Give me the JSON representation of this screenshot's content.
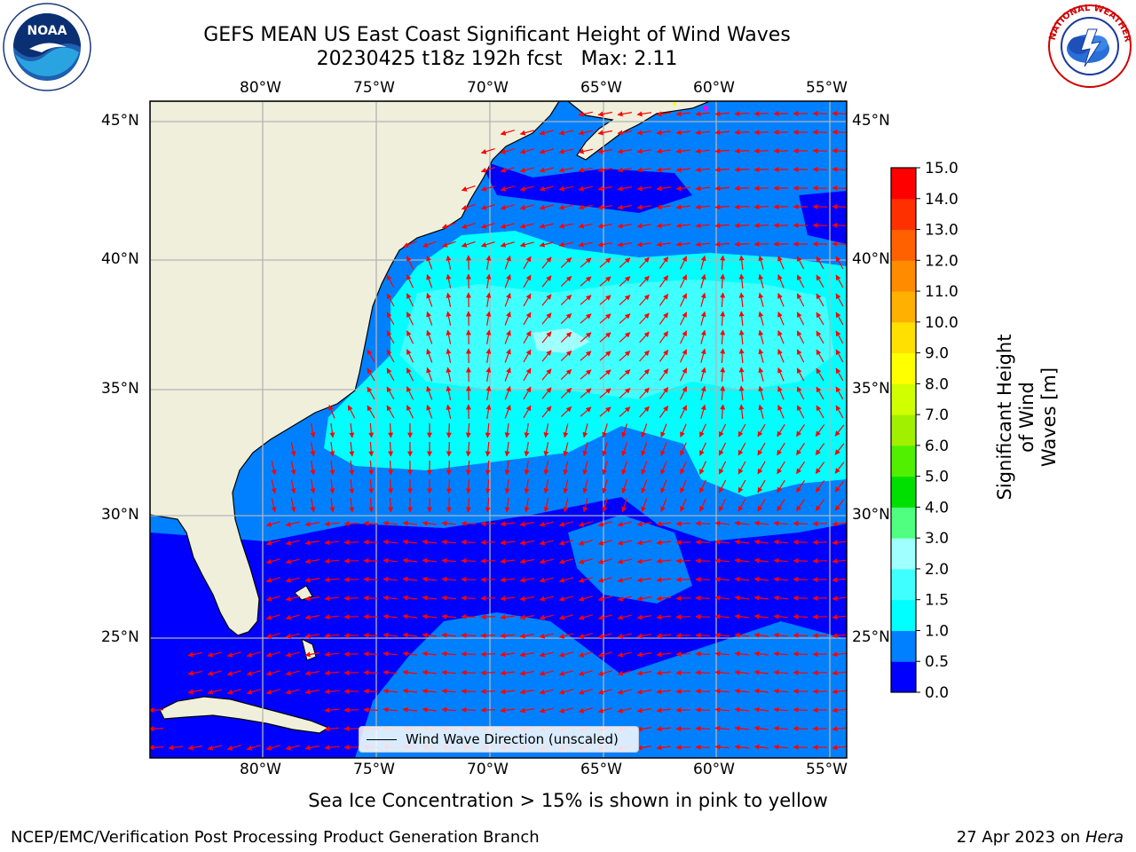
{
  "header": {
    "title_line1": "GEFS MEAN US East Coast Significant Height of Wind Waves",
    "title_line2": "20230425 t18z 192h fcst   Max: 2.11"
  },
  "logos": {
    "left": {
      "text": "NOAA",
      "ring_text": "NATIONAL OCEANIC AND ATMOSPHERIC ADMINISTRATION · U.S. DEPARTMENT OF COMMERCE"
    },
    "right": {
      "ring_text": "NATIONAL WEATHER SERVICE"
    }
  },
  "map": {
    "lon_labels": [
      "80°W",
      "75°W",
      "70°W",
      "65°W",
      "60°W",
      "55°W"
    ],
    "lat_labels": [
      "45°N",
      "40°N",
      "35°N",
      "30°N",
      "25°N"
    ],
    "lon_range": [
      -85,
      -54.3
    ],
    "lat_range": [
      20.3,
      45.8
    ],
    "legend_text": "Wind Wave Direction (unscaled)",
    "arrow_color": "#ff0000",
    "land_color": "#efefdc",
    "grid": true
  },
  "colorbar": {
    "label_line1": "Significant Height of Wind",
    "label_line2": "Waves [m]",
    "ticks": [
      "0.0",
      "0.5",
      "1.0",
      "1.5",
      "2.0",
      "3.0",
      "4.0",
      "5.0",
      "6.0",
      "7.0",
      "8.0",
      "9.0",
      "10.0",
      "11.0",
      "12.0",
      "13.0",
      "14.0",
      "15.0"
    ],
    "colors": [
      "#0000ff",
      "#0080ff",
      "#00ffff",
      "#40ffff",
      "#a0ffff",
      "#50ff80",
      "#00e000",
      "#50f000",
      "#a0f000",
      "#d0ff00",
      "#ffff00",
      "#ffe000",
      "#ffb000",
      "#ff8c00",
      "#ff6000",
      "#ff3000",
      "#ff0000"
    ]
  },
  "footer": {
    "sea_ice_note": "Sea Ice Concentration > 15% is shown in pink to yellow",
    "branch": "NCEP/EMC/Verification Post Processing Product Generation Branch",
    "date": "27 Apr 2023 on ",
    "machine": "Hera"
  }
}
